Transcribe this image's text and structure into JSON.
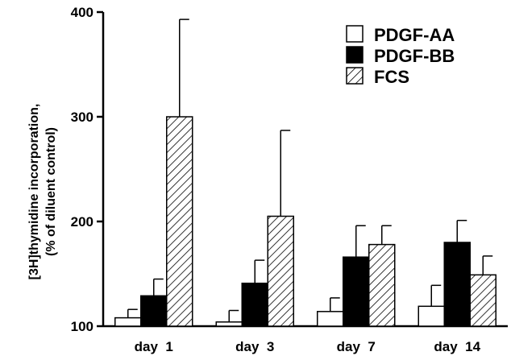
{
  "chart_data": {
    "type": "bar",
    "categories": [
      "day  1",
      "day  3",
      "day  7",
      "day  14"
    ],
    "series": [
      {
        "name": "PDGF-AA",
        "values": [
          108,
          104,
          114,
          119
        ],
        "error": [
          116,
          115,
          127,
          139
        ],
        "fill": "white"
      },
      {
        "name": "PDGF-BB",
        "values": [
          129,
          141,
          166,
          180
        ],
        "error": [
          145,
          163,
          196,
          201
        ],
        "fill": "black"
      },
      {
        "name": "FCS",
        "values": [
          300,
          205,
          178,
          149
        ],
        "error": [
          393,
          287,
          196,
          167
        ],
        "fill": "hatch"
      }
    ],
    "title": "",
    "xlabel": "",
    "ylabel_line1": "[3H]thymidine incorporation,",
    "ylabel_line2": "(% of diluent control)",
    "ylim": [
      100,
      400
    ],
    "yticks": [
      100,
      200,
      300,
      400
    ],
    "legend_position": "top-right",
    "colors": {
      "border": "#000000",
      "background": "#ffffff"
    }
  }
}
